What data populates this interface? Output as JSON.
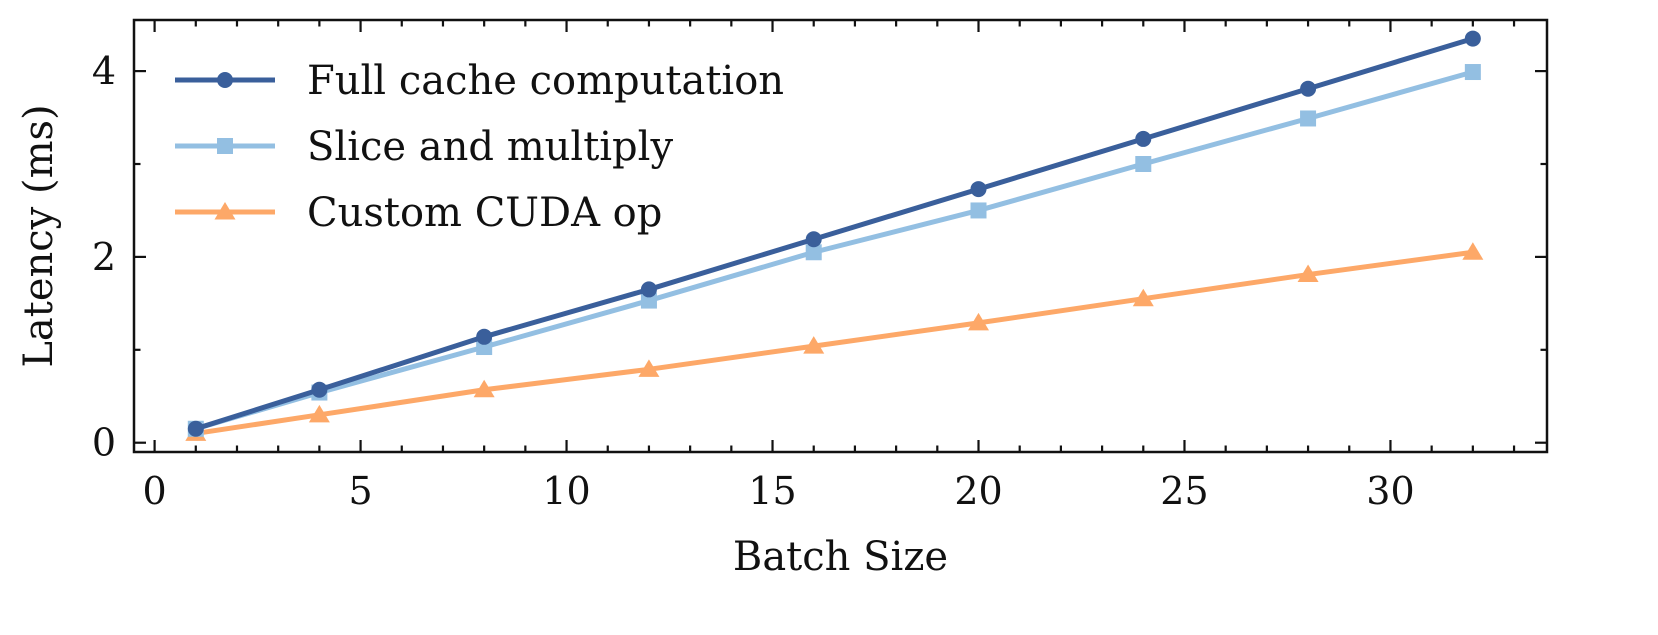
{
  "chart_data": {
    "type": "line",
    "xlabel": "Batch Size",
    "ylabel": "Latency (ms)",
    "xlim": [
      -0.5,
      33.8
    ],
    "ylim": [
      -0.1,
      4.55
    ],
    "x_ticks": [
      0,
      5,
      10,
      15,
      20,
      25,
      30
    ],
    "x_minor_step": 1,
    "y_ticks": [
      0,
      2,
      4
    ],
    "y_minor_step": 1,
    "grid": false,
    "legend_position": "top-left",
    "x": [
      1,
      4,
      8,
      12,
      16,
      20,
      24,
      28,
      32
    ],
    "series": [
      {
        "name": "Full cache computation",
        "color": "#3a5f9b",
        "marker": "circle",
        "values": [
          0.15,
          0.57,
          1.14,
          1.65,
          2.19,
          2.73,
          3.27,
          3.81,
          4.35
        ]
      },
      {
        "name": "Slice and multiply",
        "color": "#93bfe2",
        "marker": "square",
        "values": [
          0.15,
          0.54,
          1.03,
          1.53,
          2.05,
          2.5,
          3.0,
          3.49,
          3.99
        ]
      },
      {
        "name": "Custom CUDA op",
        "color": "#fda868",
        "marker": "triangle",
        "values": [
          0.1,
          0.3,
          0.57,
          0.79,
          1.04,
          1.29,
          1.55,
          1.81,
          2.05
        ]
      }
    ]
  }
}
